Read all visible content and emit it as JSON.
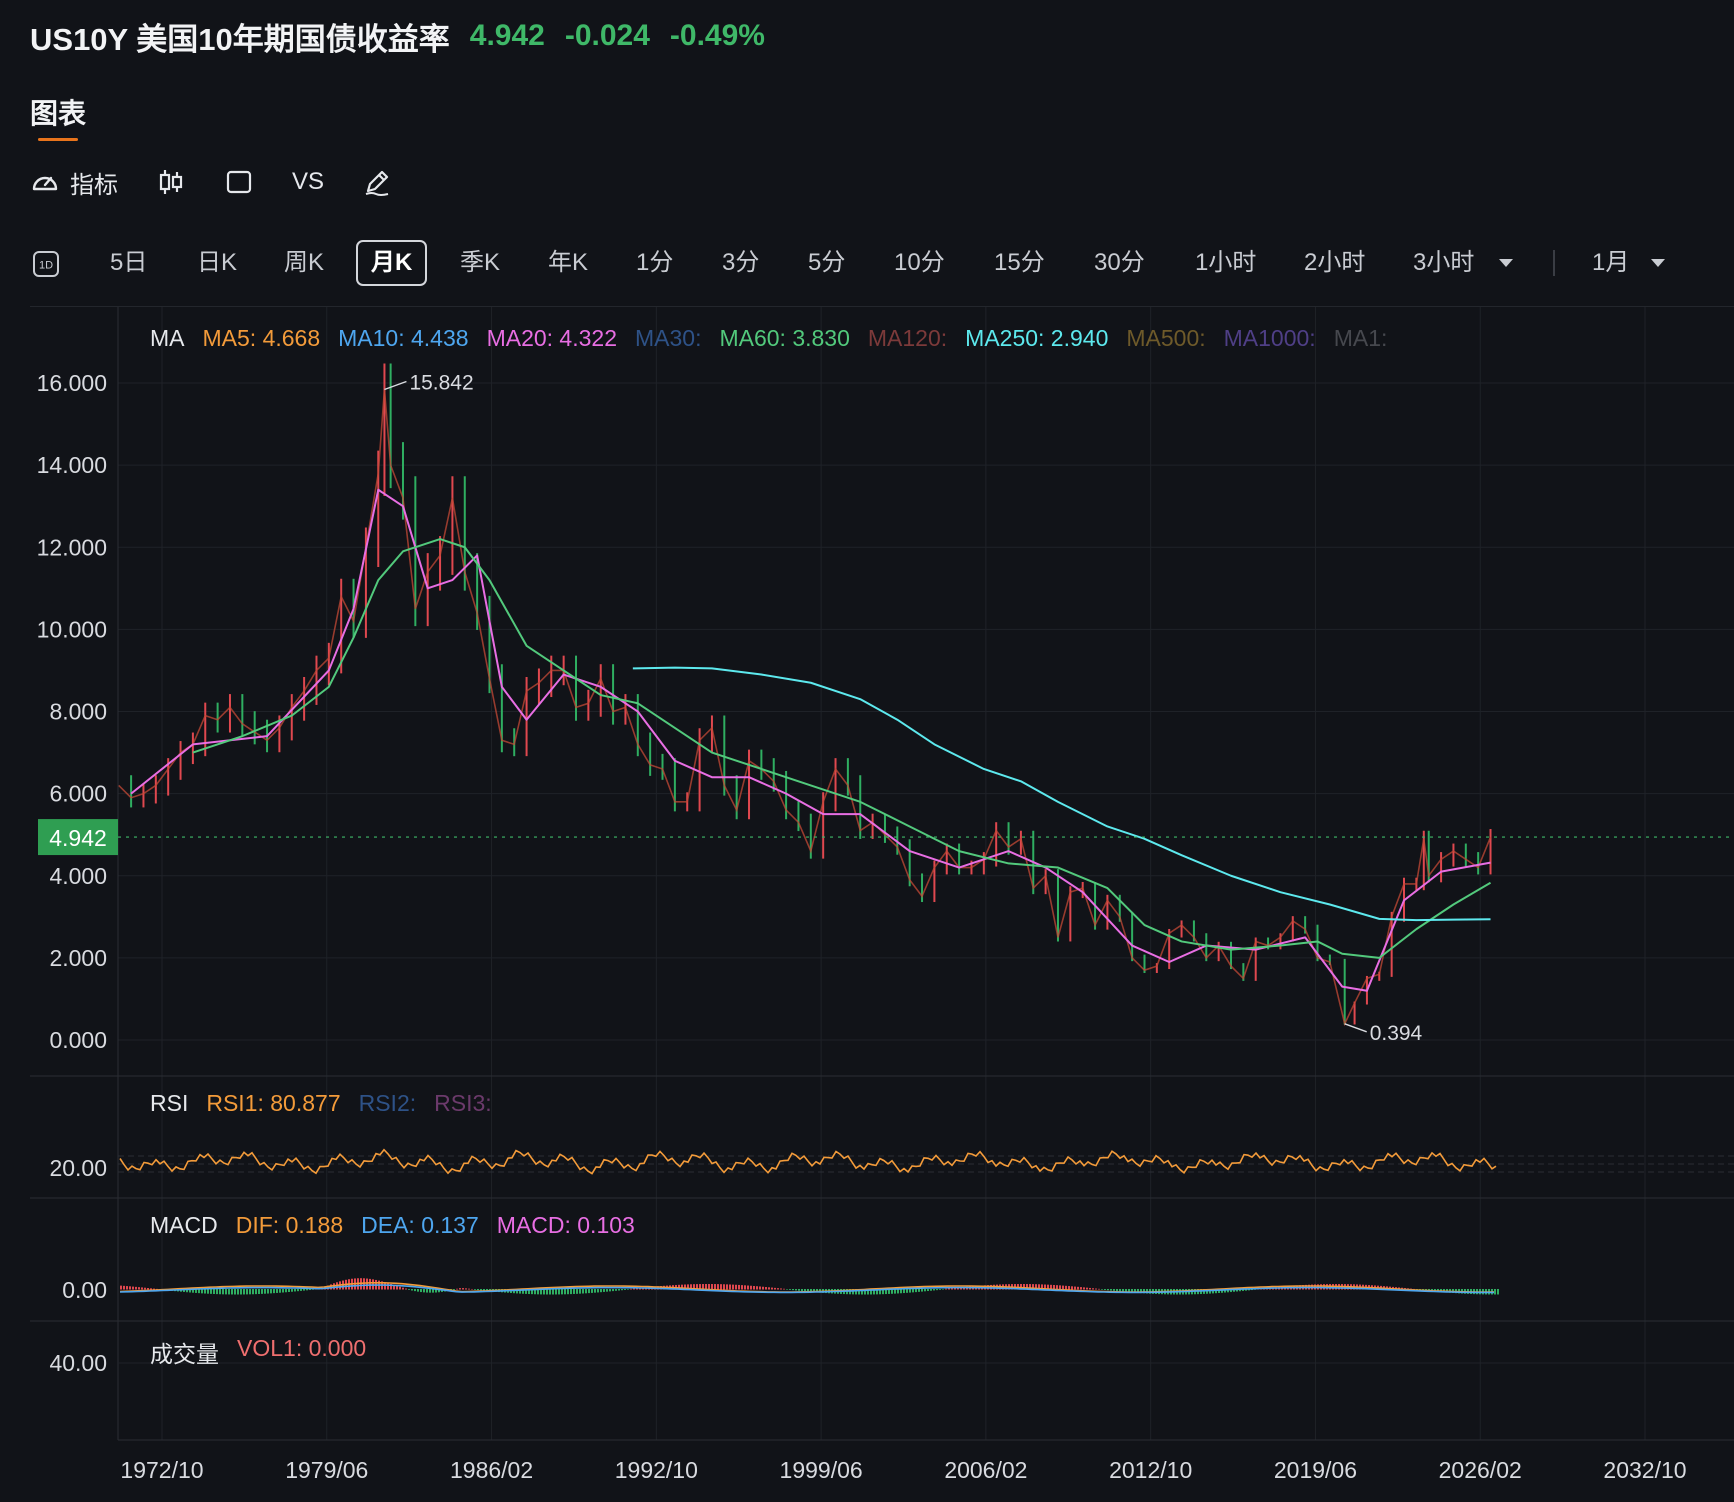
{
  "header": {
    "symbol": "US10Y 美国10年期国债收益率",
    "price": "4.942",
    "change": "-0.024",
    "change_pct": "-0.49%"
  },
  "tabs": [
    {
      "label": "图表"
    }
  ],
  "toolbar": {
    "indicator_label": "指标",
    "vs_label": "VS",
    "icons": [
      "speedometer-icon",
      "candlestick-icon",
      "square-icon",
      "pen-icon"
    ]
  },
  "periods": {
    "d1_label": "1D",
    "items": [
      "5日",
      "日K",
      "周K",
      "月K",
      "季K",
      "年K",
      "1分",
      "3分",
      "5分",
      "10分",
      "15分",
      "30分",
      "1小时",
      "2小时",
      "3小时"
    ],
    "active": "月K",
    "range_label": "1月"
  },
  "legends": {
    "ma": {
      "title": "MA",
      "items": [
        {
          "label": "MA5: 4.668",
          "color": "#f39b3a"
        },
        {
          "label": "MA10: 4.438",
          "color": "#4ea6ef"
        },
        {
          "label": "MA20: 4.322",
          "color": "#e86ee3"
        },
        {
          "label": "MA30:",
          "color": "#2e5287"
        },
        {
          "label": "MA60: 3.830",
          "color": "#52c97c"
        },
        {
          "label": "MA120:",
          "color": "#7c3a3a"
        },
        {
          "label": "MA250: 2.940",
          "color": "#5de9ee"
        },
        {
          "label": "MA500:",
          "color": "#6e5a2a"
        },
        {
          "label": "MA1000:",
          "color": "#4f3f86"
        },
        {
          "label": "MA1:",
          "color": "#46484e"
        }
      ]
    },
    "rsi": {
      "title": "RSI",
      "items": [
        {
          "label": "RSI1: 80.877",
          "color": "#f39b3a"
        },
        {
          "label": "RSI2:",
          "color": "#2e5287"
        },
        {
          "label": "RSI3:",
          "color": "#6b3a6b"
        }
      ]
    },
    "macd": {
      "title": "MACD",
      "items": [
        {
          "label": "DIF: 0.188",
          "color": "#f39b3a"
        },
        {
          "label": "DEA: 0.137",
          "color": "#4ea6ef"
        },
        {
          "label": "MACD: 0.103",
          "color": "#e86ee3"
        }
      ]
    },
    "vol": {
      "title": "成交量",
      "items": [
        {
          "label": "VOL1: 0.000",
          "color": "#ef6f6f"
        }
      ]
    }
  },
  "chart_data": {
    "type": "line",
    "title": "US10Y 美国10年期国债收益率",
    "current_price": 4.942,
    "y_ticks": [
      "16.000",
      "14.000",
      "12.000",
      "10.000",
      "8.000",
      "6.000",
      "4.000",
      "2.000",
      "0.000"
    ],
    "ylim": [
      0,
      16
    ],
    "x_ticks": [
      "1972/10",
      "1979/06",
      "1986/02",
      "1992/10",
      "1999/06",
      "2006/02",
      "2012/10",
      "2019/06",
      "2026/02",
      "2032/10"
    ],
    "xlim": [
      1971.0,
      2035.5
    ],
    "max_annotation": {
      "label": "15.842",
      "x": 1981.75,
      "y": 15.842
    },
    "min_annotation": {
      "label": "0.394",
      "x": 2020.6,
      "y": 0.394
    },
    "series": [
      {
        "name": "US10Y",
        "color": "#e8e8e8",
        "x": [
          1971.0,
          1971.5,
          1972.0,
          1972.5,
          1973.0,
          1973.5,
          1974.0,
          1974.5,
          1975.0,
          1975.5,
          1976.0,
          1976.5,
          1977.0,
          1977.5,
          1978.0,
          1978.5,
          1979.0,
          1979.5,
          1980.0,
          1980.5,
          1981.0,
          1981.5,
          1981.75,
          1982.0,
          1982.5,
          1983.0,
          1983.5,
          1984.0,
          1984.5,
          1985.0,
          1985.5,
          1986.0,
          1986.5,
          1987.0,
          1987.5,
          1988.0,
          1988.5,
          1989.0,
          1989.5,
          1990.0,
          1990.5,
          1991.0,
          1991.5,
          1992.0,
          1992.5,
          1993.0,
          1993.5,
          1994.0,
          1994.5,
          1995.0,
          1995.5,
          1996.0,
          1996.5,
          1997.0,
          1997.5,
          1998.0,
          1998.5,
          1999.0,
          1999.5,
          2000.0,
          2000.5,
          2001.0,
          2001.5,
          2002.0,
          2002.5,
          2003.0,
          2003.5,
          2004.0,
          2004.5,
          2005.0,
          2005.5,
          2006.0,
          2006.5,
          2007.0,
          2007.5,
          2008.0,
          2008.5,
          2009.0,
          2009.5,
          2010.0,
          2010.5,
          2011.0,
          2011.5,
          2012.0,
          2012.5,
          2013.0,
          2013.5,
          2014.0,
          2014.5,
          2015.0,
          2015.5,
          2016.0,
          2016.5,
          2017.0,
          2017.5,
          2018.0,
          2018.5,
          2019.0,
          2019.5,
          2020.0,
          2020.6,
          2021.0,
          2021.5,
          2022.0,
          2022.5,
          2023.0,
          2023.5,
          2023.8,
          2024.0,
          2024.5,
          2025.0,
          2025.5,
          2026.0,
          2026.5
        ],
        "values": [
          6.2,
          5.9,
          6.0,
          6.2,
          6.6,
          7.0,
          7.2,
          7.9,
          7.8,
          8.1,
          7.7,
          7.5,
          7.3,
          7.6,
          8.1,
          8.5,
          9.0,
          9.3,
          10.8,
          10.2,
          12.0,
          13.8,
          15.84,
          14.0,
          13.2,
          10.5,
          11.4,
          11.8,
          13.2,
          11.4,
          10.4,
          8.8,
          7.3,
          7.2,
          8.5,
          8.7,
          9.0,
          9.0,
          8.1,
          8.2,
          8.8,
          8.0,
          8.1,
          7.2,
          6.7,
          6.6,
          5.8,
          5.8,
          7.3,
          7.6,
          6.2,
          5.6,
          6.8,
          6.6,
          6.3,
          5.6,
          5.3,
          4.6,
          5.8,
          6.6,
          6.2,
          5.1,
          5.3,
          5.0,
          4.7,
          3.9,
          3.5,
          4.2,
          4.6,
          4.2,
          4.2,
          4.4,
          5.1,
          4.7,
          4.9,
          3.7,
          4.0,
          2.5,
          3.6,
          3.7,
          2.8,
          3.4,
          3.0,
          2.0,
          1.7,
          1.8,
          2.6,
          2.8,
          2.5,
          2.0,
          2.3,
          1.8,
          1.5,
          2.4,
          2.3,
          2.5,
          2.9,
          2.7,
          2.0,
          1.9,
          0.394,
          0.9,
          1.5,
          1.6,
          3.0,
          3.8,
          3.8,
          4.9,
          4.0,
          4.4,
          4.6,
          4.4,
          4.2,
          4.94
        ]
      },
      {
        "name": "MA20",
        "color": "#e86ee3",
        "x": [
          1971.5,
          1974,
          1977,
          1979.5,
          1980.5,
          1981.5,
          1982.5,
          1983.5,
          1984.5,
          1985.5,
          1986.5,
          1987.5,
          1989,
          1990.5,
          1992,
          1993.5,
          1995,
          1996.5,
          1998,
          1999.5,
          2001,
          2003,
          2005,
          2007,
          2008.5,
          2010,
          2012,
          2013.5,
          2015,
          2017,
          2019,
          2020.5,
          2021.5,
          2023,
          2024.5,
          2026.5
        ],
        "values": [
          6.0,
          7.2,
          7.4,
          9.0,
          10.5,
          13.4,
          13.0,
          11.0,
          11.2,
          11.8,
          8.6,
          7.8,
          8.9,
          8.6,
          8.0,
          6.8,
          6.4,
          6.4,
          6.0,
          5.5,
          5.5,
          4.6,
          4.2,
          4.6,
          4.2,
          3.6,
          2.3,
          1.9,
          2.3,
          2.2,
          2.5,
          1.3,
          1.2,
          3.4,
          4.1,
          4.32
        ]
      },
      {
        "name": "MA60",
        "color": "#52c97c",
        "x": [
          1974,
          1976,
          1978,
          1979.5,
          1980.5,
          1981.5,
          1982.5,
          1984,
          1985,
          1986,
          1987.5,
          1989,
          1990.5,
          1992,
          1993.5,
          1995,
          1997,
          1999,
          2001,
          2003,
          2005,
          2007,
          2009,
          2011,
          2012.5,
          2014,
          2016,
          2018,
          2019.5,
          2020.5,
          2022,
          2023.5,
          2025,
          2026.5
        ],
        "values": [
          7.0,
          7.4,
          7.9,
          8.6,
          9.8,
          11.2,
          11.9,
          12.2,
          12.0,
          11.2,
          9.6,
          9.0,
          8.4,
          8.2,
          7.6,
          7.0,
          6.6,
          6.2,
          5.8,
          5.2,
          4.6,
          4.3,
          4.2,
          3.7,
          2.8,
          2.4,
          2.2,
          2.3,
          2.4,
          2.1,
          2.0,
          2.7,
          3.3,
          3.83
        ]
      },
      {
        "name": "MA250",
        "color": "#5de9ee",
        "x": [
          1991.8,
          1993.5,
          1995,
          1997,
          1999,
          2001,
          2002.5,
          2004,
          2006,
          2007.5,
          2009,
          2011,
          2012.5,
          2014,
          2016,
          2018,
          2020,
          2022,
          2023.5,
          2025,
          2026.5
        ],
        "values": [
          9.05,
          9.07,
          9.05,
          8.9,
          8.7,
          8.3,
          7.8,
          7.2,
          6.6,
          6.3,
          5.8,
          5.2,
          4.9,
          4.5,
          4.0,
          3.6,
          3.3,
          2.95,
          2.92,
          2.93,
          2.94
        ]
      }
    ],
    "rsi": {
      "y_tick": "20.00",
      "current": 80.877
    },
    "macd": {
      "y_tick": "0.00",
      "dif": 0.188,
      "dea": 0.137,
      "macd": 0.103
    },
    "volume": {
      "y_tick": "40.00",
      "vol1": 0.0
    }
  }
}
